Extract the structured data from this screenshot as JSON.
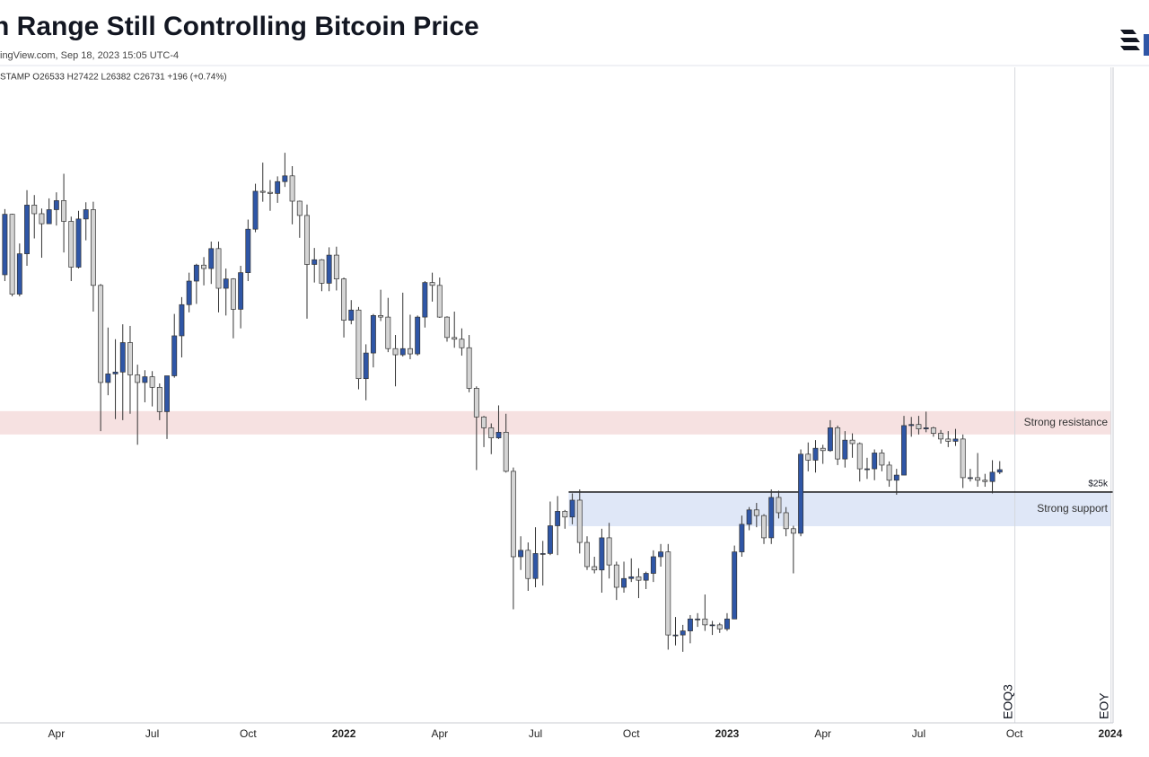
{
  "header": {
    "title": "n Range Still Controlling Bitcoin Price",
    "subtitle": "ingView.com, Sep 18, 2023 15:05 UTC-4",
    "ohlc": "STAMP  O26533  H27422  L26382  C26731  +196 (+0.74%)"
  },
  "chart_data": {
    "type": "candlestick",
    "categories": [
      null,
      null,
      null,
      null,
      null,
      null,
      null,
      "Apr",
      null,
      null,
      null,
      null,
      null,
      null,
      null,
      null,
      null,
      null,
      null,
      null,
      "Jul",
      null,
      null,
      null,
      null,
      null,
      null,
      null,
      null,
      null,
      null,
      null,
      null,
      "Oct",
      null,
      null,
      null,
      null,
      null,
      null,
      null,
      null,
      null,
      null,
      null,
      null,
      "2022",
      null,
      null,
      null,
      null,
      null,
      null,
      null,
      null,
      null,
      null,
      null,
      null,
      "Apr",
      null,
      null,
      null,
      null,
      null,
      null,
      null,
      null,
      null,
      null,
      null,
      null,
      "Jul",
      null,
      null,
      null,
      null,
      null,
      null,
      null,
      null,
      null,
      null,
      null,
      null,
      "Oct",
      null,
      null,
      null,
      null,
      null,
      null,
      null,
      null,
      null,
      null,
      null,
      null,
      "2023",
      null,
      null,
      null,
      null,
      null,
      null,
      null,
      null,
      null,
      null,
      null,
      null,
      "Apr",
      null,
      null,
      null,
      null,
      null,
      null,
      null,
      null,
      null,
      null,
      null,
      null,
      "Jul",
      null,
      null,
      null,
      null,
      null,
      null,
      null,
      null,
      null,
      null,
      null,
      null,
      "Oct",
      null,
      null,
      null,
      null,
      null,
      null,
      null,
      null,
      null,
      null,
      null,
      null,
      "2024"
    ],
    "open": [
      47900,
      57400,
      45200,
      51000,
      59000,
      57500,
      55800,
      58200,
      59800,
      56200,
      49000,
      56600,
      58200,
      46400,
      34700,
      35600,
      35800,
      39100,
      35500,
      34700,
      35300,
      34200,
      31800,
      35400,
      39900,
      43800,
      47000,
      49300,
      48800,
      51800,
      46000,
      47300,
      43200,
      48200,
      54900,
      61500,
      61300,
      61100,
      63300,
      64400,
      59700,
      57200,
      49400,
      50100,
      46700,
      50800,
      47300,
      41800,
      43100,
      35100,
      37900,
      42400,
      42200,
      38400,
      37700,
      38400,
      37800,
      42200,
      46800,
      46400,
      42200,
      39700,
      39500,
      38500,
      34100,
      31300,
      30300,
      29400,
      29900,
      26600,
      20600,
      21000,
      19300,
      20800,
      20800,
      22600,
      23600,
      23200,
      24400,
      21500,
      20000,
      19800,
      21800,
      20100,
      18800,
      19300,
      19400,
      19200,
      19600,
      20600,
      20900,
      16300,
      16300,
      16500,
      17100,
      17100,
      16800,
      16800,
      16600,
      17100,
      20900,
      22700,
      23700,
      23300,
      21800,
      24600,
      23500,
      22400,
      22100,
      28000,
      27500,
      28500,
      28300,
      30300,
      27600,
      29200,
      28900,
      26800,
      26800,
      28100,
      27100,
      25900,
      26300,
      30500,
      30600,
      30200,
      30300,
      29800,
      29300,
      29100,
      29300,
      26100,
      26100,
      25900,
      25800,
      26533,
      null,
      null,
      null,
      null,
      null,
      null,
      null,
      null,
      null,
      null,
      null,
      null,
      null,
      null,
      null
    ],
    "high": [
      58300,
      57500,
      52600,
      61700,
      60800,
      58400,
      60200,
      61300,
      64800,
      57000,
      58000,
      59500,
      59600,
      46600,
      40900,
      39500,
      41300,
      41100,
      36600,
      36000,
      35900,
      34600,
      35400,
      42600,
      44800,
      48200,
      49500,
      50500,
      52900,
      52900,
      48800,
      47400,
      49200,
      56500,
      62900,
      67000,
      63600,
      64300,
      69000,
      66300,
      59800,
      59100,
      51900,
      50200,
      52000,
      52100,
      47500,
      44400,
      43500,
      38900,
      42600,
      45800,
      44700,
      40000,
      45400,
      42500,
      42400,
      47000,
      48200,
      47500,
      42300,
      42900,
      40800,
      40000,
      34300,
      31400,
      30700,
      32400,
      31600,
      26900,
      21900,
      21500,
      22500,
      21600,
      24300,
      24700,
      23700,
      24900,
      25200,
      21900,
      20600,
      22400,
      22800,
      20300,
      20300,
      20500,
      19900,
      19700,
      21000,
      21400,
      21400,
      17200,
      16800,
      17300,
      17400,
      18400,
      17000,
      16900,
      17400,
      21300,
      23300,
      23900,
      24200,
      23400,
      25200,
      25100,
      23900,
      22600,
      28400,
      29000,
      29200,
      28800,
      31000,
      30500,
      30000,
      29800,
      29000,
      27700,
      28400,
      28400,
      27400,
      26800,
      31400,
      31300,
      31400,
      31800,
      30400,
      30100,
      30000,
      30200,
      29700,
      26800,
      28100,
      26400,
      27500,
      27422,
      null,
      null,
      null,
      null,
      null,
      null,
      null,
      null,
      null,
      null,
      null,
      null,
      null,
      null,
      null
    ],
    "low": [
      47000,
      44900,
      44900,
      49200,
      53400,
      50400,
      55800,
      55500,
      51200,
      47000,
      48800,
      53100,
      42900,
      30000,
      33400,
      31100,
      31000,
      31600,
      28800,
      32700,
      32300,
      31000,
      29300,
      35200,
      37400,
      42800,
      43900,
      46400,
      46600,
      42800,
      42400,
      39600,
      40800,
      47000,
      54400,
      59600,
      58000,
      59400,
      62300,
      55700,
      53500,
      42000,
      46800,
      45600,
      45600,
      45700,
      39700,
      41300,
      34000,
      32900,
      36300,
      41700,
      38000,
      34300,
      37500,
      37200,
      37600,
      40900,
      44200,
      42100,
      39200,
      38500,
      37600,
      33700,
      26700,
      28600,
      28000,
      29300,
      26500,
      17600,
      19800,
      18600,
      18800,
      18900,
      20700,
      20700,
      22400,
      22700,
      20800,
      19800,
      19600,
      18500,
      19300,
      18100,
      18500,
      19100,
      18200,
      18700,
      19100,
      20000,
      15600,
      15800,
      15500,
      15900,
      16700,
      16500,
      16300,
      16400,
      16500,
      17100,
      20600,
      22300,
      22500,
      21400,
      21400,
      23100,
      21900,
      19600,
      21900,
      26600,
      26500,
      27200,
      28200,
      27100,
      26900,
      27700,
      25800,
      26000,
      25900,
      26600,
      25400,
      24800,
      26300,
      29500,
      29700,
      29900,
      29500,
      28900,
      28600,
      28700,
      25300,
      25800,
      25400,
      25400,
      24900,
      26382,
      null,
      null,
      null,
      null,
      null,
      null,
      null,
      null,
      null,
      null,
      null,
      null,
      null,
      null,
      null
    ],
    "close": [
      57400,
      45200,
      51000,
      59000,
      57500,
      55800,
      58200,
      59800,
      56200,
      49000,
      56600,
      58200,
      46400,
      34700,
      35600,
      35800,
      39100,
      35500,
      34700,
      35300,
      34200,
      31800,
      35400,
      39900,
      43800,
      47000,
      49300,
      48800,
      51800,
      46000,
      47300,
      43200,
      48200,
      54900,
      61500,
      61300,
      61100,
      63300,
      64400,
      59700,
      57200,
      49400,
      50100,
      46700,
      50800,
      47300,
      41800,
      43100,
      35100,
      37900,
      42400,
      42200,
      38400,
      37700,
      38400,
      37800,
      42200,
      46800,
      46400,
      42200,
      39700,
      39500,
      38500,
      34100,
      31300,
      30300,
      29400,
      29900,
      26600,
      20600,
      21000,
      19300,
      20800,
      20800,
      22600,
      23600,
      23200,
      24400,
      21500,
      20000,
      19800,
      21800,
      20100,
      18800,
      19300,
      19400,
      19200,
      19600,
      20600,
      20900,
      16300,
      16300,
      16500,
      17100,
      17100,
      16800,
      16800,
      16600,
      17100,
      20900,
      22700,
      23700,
      23300,
      21800,
      24600,
      23500,
      22400,
      22100,
      28000,
      27500,
      28500,
      28300,
      30300,
      27600,
      29200,
      28900,
      26800,
      26800,
      28100,
      27100,
      25900,
      26300,
      30500,
      30600,
      30200,
      30300,
      29800,
      29300,
      29100,
      29300,
      26100,
      26100,
      25900,
      25800,
      26530,
      26731,
      null,
      null,
      null,
      null,
      null,
      null,
      null,
      null,
      null,
      null,
      null,
      null,
      null,
      null,
      null
    ],
    "up_color": "#2f56a6",
    "down_color": "#d4d4d4",
    "ylim": [
      12530,
      89100
    ],
    "log_scale": true,
    "levels": [
      {
        "value": 25000,
        "label": "$25k"
      }
    ],
    "zones": [
      {
        "label": "Strong resistance",
        "range": [
          29700,
          31850
        ],
        "color": "#f6e1e1"
      },
      {
        "label": "Strong support",
        "range": [
          22570,
          25000
        ],
        "color": "#dfe7f7"
      }
    ],
    "annotations": [
      "EOQ3",
      "EOY"
    ]
  }
}
